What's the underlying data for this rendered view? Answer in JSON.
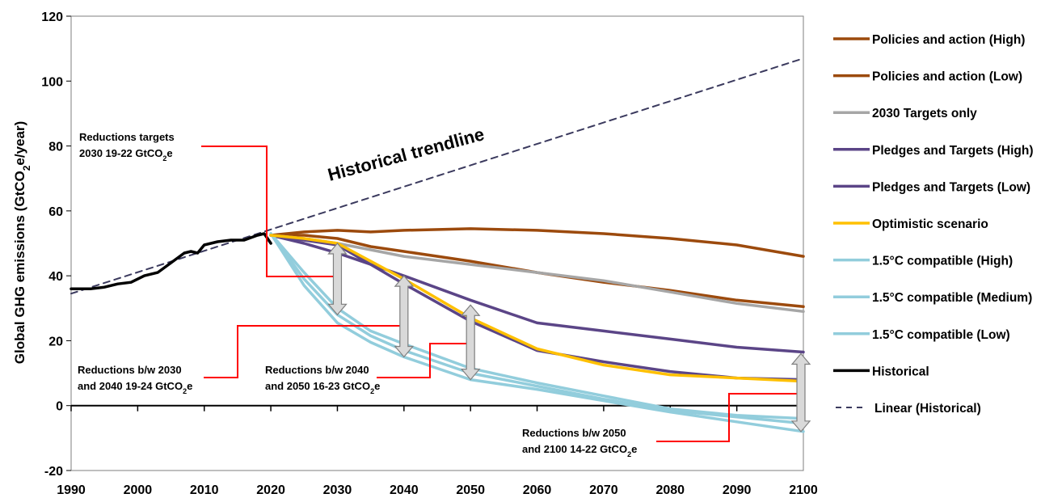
{
  "chart_data": {
    "type": "line",
    "title": "",
    "xlabel": "",
    "ylabel_parts": [
      "Global GHG emissions (GtCO",
      "2",
      "e/year)"
    ],
    "xlim": [
      1990,
      2100
    ],
    "ylim": [
      -20,
      120
    ],
    "x_ticks": [
      "1990",
      "2000",
      "2010",
      "2020",
      "2030",
      "2040",
      "2050",
      "2060",
      "2070",
      "2080",
      "2090",
      "2100"
    ],
    "y_ticks": [
      "-20",
      "0",
      "20",
      "40",
      "60",
      "80",
      "100",
      "120"
    ],
    "x_tick_values": [
      1990,
      2000,
      2010,
      2020,
      2030,
      2040,
      2050,
      2060,
      2070,
      2080,
      2090,
      2100
    ],
    "y_tick_values": [
      -20,
      0,
      20,
      40,
      60,
      80,
      100,
      120
    ],
    "legend_position": "right",
    "trendline_label": "Historical trendline",
    "series": [
      {
        "name": "Policies and action (High)",
        "color": "#9c4a0d",
        "style": "solid",
        "x": [
          2020,
          2025,
          2030,
          2035,
          2040,
          2050,
          2060,
          2070,
          2080,
          2090,
          2100
        ],
        "y": [
          52.5,
          53.5,
          54,
          53.5,
          54,
          54.5,
          54,
          53,
          51.5,
          49.5,
          46
        ]
      },
      {
        "name": "Policies and action (Low)",
        "color": "#9c4a0d",
        "style": "solid",
        "x": [
          2020,
          2025,
          2030,
          2035,
          2040,
          2050,
          2060,
          2070,
          2080,
          2090,
          2100
        ],
        "y": [
          52.5,
          52.5,
          51.5,
          49,
          47.5,
          44.5,
          41,
          38,
          35.5,
          32.5,
          30.5
        ]
      },
      {
        "name": "2030 Targets only",
        "color": "#a6a6a6",
        "style": "solid",
        "x": [
          2020,
          2025,
          2030,
          2035,
          2040,
          2050,
          2060,
          2070,
          2080,
          2090,
          2100
        ],
        "y": [
          52.5,
          51.5,
          50,
          48,
          46,
          43.5,
          41,
          38.5,
          35,
          31.5,
          29
        ]
      },
      {
        "name": "Pledges and Targets (High)",
        "color": "#5b4587",
        "style": "solid",
        "x": [
          2020,
          2025,
          2030,
          2040,
          2050,
          2060,
          2070,
          2080,
          2090,
          2100
        ],
        "y": [
          52.5,
          50,
          47,
          40,
          32.5,
          25.5,
          23,
          20.5,
          18,
          16.5
        ]
      },
      {
        "name": "Pledges and Targets (Low)",
        "color": "#5b4587",
        "style": "solid",
        "x": [
          2020,
          2025,
          2030,
          2040,
          2050,
          2060,
          2070,
          2080,
          2090,
          2100
        ],
        "y": [
          52.5,
          51,
          49.5,
          37.5,
          26,
          17,
          13.5,
          10.5,
          8.5,
          8
        ]
      },
      {
        "name": "Optimistic scenario",
        "color": "#ffc000",
        "style": "solid",
        "x": [
          2020,
          2025,
          2030,
          2040,
          2050,
          2060,
          2070,
          2080,
          2090,
          2100
        ],
        "y": [
          52.5,
          51.5,
          50,
          39,
          27,
          17.5,
          12.5,
          9.5,
          8.5,
          7.5
        ]
      },
      {
        "name": "1.5°C compatible (High)",
        "color": "#92cddc",
        "style": "solid",
        "x": [
          2020,
          2025,
          2030,
          2035,
          2040,
          2050,
          2060,
          2070,
          2080,
          2090,
          2100
        ],
        "y": [
          53,
          41,
          30,
          23,
          19,
          11.5,
          7,
          3,
          -1,
          -3,
          -4
        ]
      },
      {
        "name": "1.5°C compatible (Medium)",
        "color": "#92cddc",
        "style": "solid",
        "x": [
          2020,
          2025,
          2030,
          2035,
          2040,
          2050,
          2060,
          2070,
          2080,
          2090,
          2100
        ],
        "y": [
          53,
          39,
          28,
          21.5,
          17,
          10,
          6,
          2,
          -1.5,
          -3.5,
          -5.5
        ]
      },
      {
        "name": "1.5°C compatible (Low)",
        "color": "#92cddc",
        "style": "solid",
        "x": [
          2020,
          2025,
          2030,
          2035,
          2040,
          2050,
          2060,
          2070,
          2080,
          2090,
          2100
        ],
        "y": [
          53,
          37,
          25.5,
          19.5,
          15,
          8,
          5,
          1.5,
          -2,
          -5,
          -8
        ]
      },
      {
        "name": "Historical",
        "color": "#000000",
        "style": "solid",
        "x": [
          1990,
          1993,
          1995,
          1997,
          1999,
          2001,
          2003,
          2005,
          2007,
          2008,
          2009,
          2010,
          2012,
          2014,
          2016,
          2018,
          2019,
          2020
        ],
        "y": [
          36,
          36,
          36.5,
          37.5,
          38,
          40,
          41,
          44,
          47,
          47.5,
          47,
          49.5,
          50.5,
          51,
          51,
          52.5,
          53,
          50
        ]
      },
      {
        "name": "Linear (Historical)",
        "color": "#3b3a5e",
        "style": "dashed",
        "x": [
          1990,
          2100
        ],
        "y": [
          34.5,
          107
        ]
      }
    ],
    "annotations": [
      {
        "lines": [
          [
            "Reductions targets"
          ],
          [
            "2030 19-22 GtCO",
            "2",
            "e"
          ]
        ]
      },
      {
        "lines": [
          [
            "Reductions b/w 2030"
          ],
          [
            "and 2040 19-24 GtCO",
            "2",
            "e"
          ]
        ]
      },
      {
        "lines": [
          [
            "Reductions b/w 2040"
          ],
          [
            "and 2050 16-23 GtCO",
            "2",
            "e"
          ]
        ]
      },
      {
        "lines": [
          [
            "Reductions b/w 2050"
          ],
          [
            "and 2100 14-22 GtCO",
            "2",
            "e"
          ]
        ]
      }
    ],
    "reduction_arrows": [
      {
        "x": 2030,
        "y_from": 50,
        "y_to": 28
      },
      {
        "x": 2040,
        "y_from": 40,
        "y_to": 15
      },
      {
        "x": 2050,
        "y_from": 31,
        "y_to": 8
      },
      {
        "x": 2100,
        "y_from": 16,
        "y_to": -8
      }
    ]
  }
}
